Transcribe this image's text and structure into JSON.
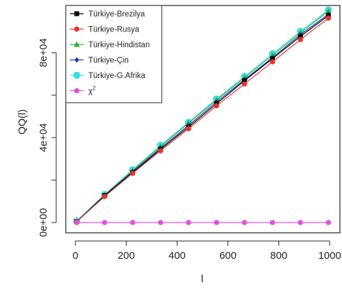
{
  "chart_data": {
    "type": "line",
    "xlabel": "l",
    "ylabel": "QQ(l)",
    "xlim": [
      0,
      1000
    ],
    "ylim": [
      0,
      100000
    ],
    "x_ticks": [
      "0",
      "200",
      "400",
      "600",
      "800",
      "1000"
    ],
    "x_tick_values": [
      0,
      200,
      400,
      600,
      800,
      1000
    ],
    "y_ticks": [
      "0e+00",
      "4e+04",
      "8e+04"
    ],
    "y_tick_values": [
      0,
      40000,
      80000
    ],
    "grid": false,
    "legend_position": "top-left",
    "x": [
      5,
      115,
      225,
      335,
      445,
      555,
      665,
      775,
      885,
      995
    ],
    "series": [
      {
        "name": "Türkiye-Brezilya",
        "color": "#000000",
        "marker": "square",
        "values": [
          400,
          12700,
          23500,
          34500,
          45000,
          56000,
          66800,
          77200,
          87700,
          97500
        ]
      },
      {
        "name": "Türkiye-Rusya",
        "color": "#e8322a",
        "marker": "circle",
        "values": [
          400,
          12300,
          23200,
          33800,
          44200,
          55000,
          65300,
          75700,
          86200,
          96300
        ]
      },
      {
        "name": "Türkiye-Hindistan",
        "color": "#2cb32c",
        "marker": "triangle",
        "values": [
          400,
          12900,
          24400,
          35800,
          46900,
          57700,
          68200,
          78800,
          89400,
          99600
        ]
      },
      {
        "name": "Türkiye-Çin",
        "color": "#1f35c4",
        "marker": "diamond",
        "values": [
          400,
          12800,
          24000,
          35000,
          45800,
          56800,
          67300,
          77700,
          88500,
          98200
        ]
      },
      {
        "name": "Türkiye-G.Afrika",
        "color": "#38e0e0",
        "marker": "big-circle",
        "values": [
          800,
          13200,
          24900,
          36400,
          47200,
          58200,
          68800,
          79500,
          90100,
          100200
        ]
      },
      {
        "name": "χ",
        "name_superscript": "2",
        "color": "#e050e0",
        "marker": "circle",
        "values": [
          0,
          0,
          0,
          0,
          0,
          0,
          0,
          0,
          0,
          0
        ]
      }
    ]
  }
}
